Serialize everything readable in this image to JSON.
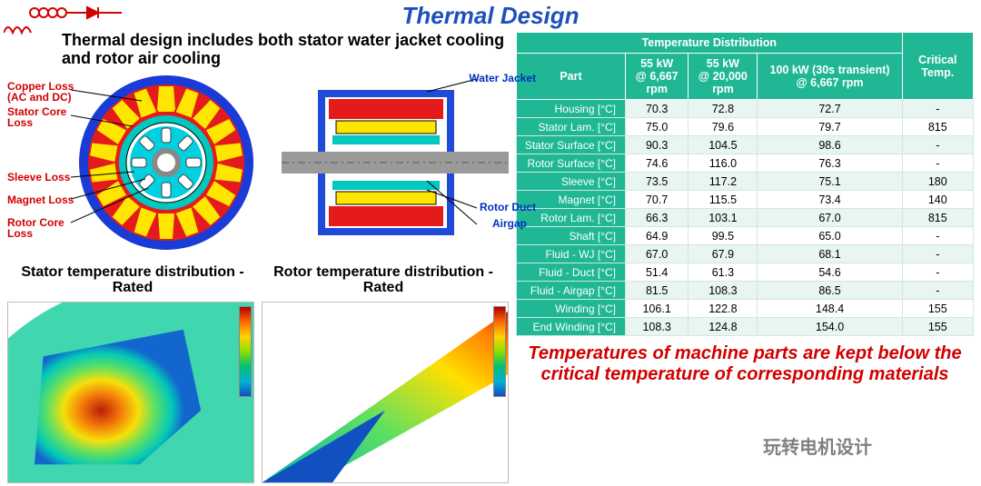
{
  "title": "Thermal Design",
  "subhead": "Thermal design includes both stator water jacket cooling and rotor air cooling",
  "labels_red": {
    "copper_loss": "Copper Loss\n(AC and DC)",
    "stator_core": "Stator Core\nLoss",
    "sleeve": "Sleeve Loss",
    "magnet": "Magnet Loss",
    "rotor_core": "Rotor Core\nLoss"
  },
  "labels_blue": {
    "water_jacket": "Water Jacket",
    "rotor_duct": "Rotor Duct",
    "airgap": "Airgap"
  },
  "captions": {
    "stator": "Stator temperature distribution - Rated",
    "rotor": "Rotor temperature distribution - Rated"
  },
  "table": {
    "header_top": "Temperature Distribution",
    "header_crit": "Critical Temp.",
    "header_part": "Part",
    "col1": "55 kW\n@ 6,667 rpm",
    "col2": "55 kW\n@ 20,000 rpm",
    "col3": "100 kW (30s transient) @ 6,667 rpm",
    "rows": [
      {
        "part": "Housing [°C]",
        "v1": "70.3",
        "v2": "72.8",
        "v3": "72.7",
        "crit": "-"
      },
      {
        "part": "Stator Lam. [°C]",
        "v1": "75.0",
        "v2": "79.6",
        "v3": "79.7",
        "crit": "815"
      },
      {
        "part": "Stator Surface [°C]",
        "v1": "90.3",
        "v2": "104.5",
        "v3": "98.6",
        "crit": "-"
      },
      {
        "part": "Rotor Surface [°C]",
        "v1": "74.6",
        "v2": "116.0",
        "v3": "76.3",
        "crit": "-"
      },
      {
        "part": "Sleeve [°C]",
        "v1": "73.5",
        "v2": "117.2",
        "v3": "75.1",
        "crit": "180"
      },
      {
        "part": "Magnet [°C]",
        "v1": "70.7",
        "v2": "115.5",
        "v3": "73.4",
        "crit": "140"
      },
      {
        "part": "Rotor Lam. [°C]",
        "v1": "66.3",
        "v2": "103.1",
        "v3": "67.0",
        "crit": "815"
      },
      {
        "part": "Shaft [°C]",
        "v1": "64.9",
        "v2": "99.5",
        "v3": "65.0",
        "crit": "-"
      },
      {
        "part": "Fluid - WJ [°C]",
        "v1": "67.0",
        "v2": "67.9",
        "v3": "68.1",
        "crit": "-"
      },
      {
        "part": "Fluid - Duct [°C]",
        "v1": "51.4",
        "v2": "61.3",
        "v3": "54.6",
        "crit": "-"
      },
      {
        "part": "Fluid - Airgap [°C]",
        "v1": "81.5",
        "v2": "108.3",
        "v3": "86.5",
        "crit": "-"
      },
      {
        "part": "Winding [°C]",
        "v1": "106.1",
        "v2": "122.8",
        "v3": "148.4",
        "crit": "155"
      },
      {
        "part": "End Winding [°C]",
        "v1": "108.3",
        "v2": "124.8",
        "v3": "154.0",
        "crit": "155"
      }
    ]
  },
  "conclusion": "Temperatures of machine parts are kept below the critical temperature of corresponding materials",
  "colors": {
    "title": "#1e4fbb",
    "red": "#d20000",
    "blue": "#0030c0",
    "table_header": "#1fb794",
    "row_alt": "#e8f5f1",
    "motor_outer": "#1a3bd6",
    "motor_stator": "#e51b1b",
    "motor_slot": "#ffe600",
    "motor_sleeve": "#00c7c0",
    "motor_rotor": "#00a6d8",
    "shaft": "#888888",
    "housing": "#204bd8"
  },
  "watermark": "玩转电机设计"
}
